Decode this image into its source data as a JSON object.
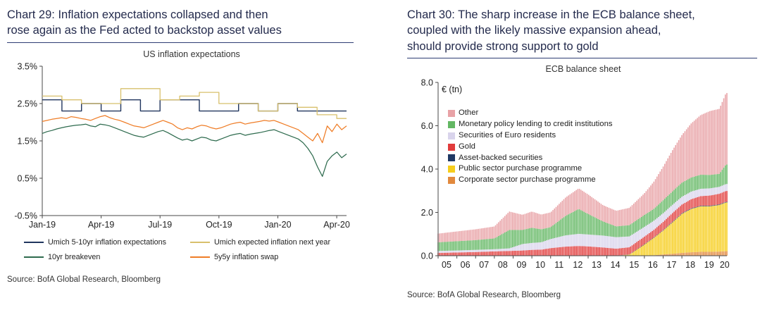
{
  "left": {
    "heading_lines": [
      "Chart 29: Inflation expectations collapsed and then",
      "rose again as the Fed acted to backstop asset values"
    ],
    "source": "Source: BofA Global Research, Bloomberg"
  },
  "right": {
    "heading_lines": [
      "Chart 30: The sharp increase in the ECB balance sheet,",
      "coupled with the likely massive expansion ahead,",
      "should provide strong support to gold"
    ],
    "source": "Source: BofA Global Research, Bloomberg"
  },
  "colors": {
    "heading": "#242b4d",
    "rule": "#2e3d73",
    "axis": "#4a4a4a"
  },
  "chart_data": [
    {
      "type": "line",
      "title": "US inflation expectations",
      "ylim": [
        -0.5,
        3.5
      ],
      "ytick_values": [
        3.5,
        2.5,
        1.5,
        0.5,
        -0.5
      ],
      "ytick_labels": [
        "3.5%",
        "2.5%",
        "1.5%",
        "0.5%",
        "-0.5%"
      ],
      "x_range": [
        0,
        15.5
      ],
      "xticks": [
        {
          "m": 0,
          "label": "Jan-19"
        },
        {
          "m": 3,
          "label": "Apr-19"
        },
        {
          "m": 6,
          "label": "Jul-19"
        },
        {
          "m": 9,
          "label": "Oct-19"
        },
        {
          "m": 12,
          "label": "Jan-20"
        },
        {
          "m": 15,
          "label": "Apr-20"
        }
      ],
      "grid": false,
      "legend_position": "below",
      "series": [
        {
          "name": "Umich 5-10yr inflation expectations",
          "color": "#20355e",
          "style": "step",
          "width": 1.4,
          "values": [
            2.6,
            2.3,
            2.5,
            2.3,
            2.6,
            2.3,
            2.6,
            2.6,
            2.3,
            2.3,
            2.5,
            2.3,
            2.5,
            2.3,
            2.3,
            2.3
          ]
        },
        {
          "name": "Umich expected inflation next year",
          "color": "#d8c06c",
          "style": "step",
          "width": 1.3,
          "values": [
            2.7,
            2.6,
            2.5,
            2.5,
            2.9,
            2.9,
            2.6,
            2.7,
            2.8,
            2.5,
            2.5,
            2.3,
            2.5,
            2.4,
            2.2,
            2.1
          ]
        },
        {
          "name": "10yr breakeven",
          "color": "#2e6b4e",
          "style": "line",
          "width": 1.25,
          "values": [
            1.7,
            1.75,
            1.78,
            1.82,
            1.85,
            1.88,
            1.9,
            1.92,
            1.93,
            1.95,
            1.9,
            1.88,
            1.95,
            1.93,
            1.9,
            1.85,
            1.8,
            1.75,
            1.7,
            1.65,
            1.62,
            1.6,
            1.65,
            1.7,
            1.75,
            1.78,
            1.72,
            1.65,
            1.58,
            1.52,
            1.55,
            1.5,
            1.55,
            1.6,
            1.58,
            1.52,
            1.5,
            1.55,
            1.6,
            1.65,
            1.68,
            1.7,
            1.65,
            1.68,
            1.7,
            1.72,
            1.75,
            1.78,
            1.8,
            1.75,
            1.7,
            1.65,
            1.6,
            1.55,
            1.45,
            1.3,
            1.1,
            0.8,
            0.55,
            0.95,
            1.1,
            1.2,
            1.05,
            1.15
          ]
        },
        {
          "name": "5y5y inflation swap",
          "color": "#ef7d27",
          "style": "line",
          "width": 1.25,
          "values": [
            2.02,
            2.05,
            2.08,
            2.1,
            2.12,
            2.1,
            2.15,
            2.13,
            2.1,
            2.08,
            2.05,
            2.1,
            2.15,
            2.18,
            2.12,
            2.08,
            2.05,
            2.0,
            1.95,
            1.9,
            1.88,
            1.85,
            1.9,
            1.95,
            2.0,
            2.05,
            2.0,
            1.95,
            1.85,
            1.8,
            1.85,
            1.82,
            1.88,
            1.92,
            1.9,
            1.85,
            1.82,
            1.85,
            1.9,
            1.95,
            1.98,
            2.0,
            1.95,
            1.98,
            2.0,
            2.02,
            2.05,
            2.03,
            2.05,
            2.0,
            1.95,
            1.9,
            1.85,
            1.8,
            1.7,
            1.6,
            1.5,
            1.7,
            1.45,
            1.9,
            1.75,
            1.95,
            1.8,
            1.9
          ]
        }
      ]
    },
    {
      "type": "stacked-bar",
      "title": "ECB balance sheet",
      "unit_label": "€ (tn)",
      "ylim": [
        0,
        8
      ],
      "ytick_values": [
        0,
        2,
        4,
        6,
        8
      ],
      "ytick_labels": [
        "0.0",
        "2.0",
        "4.0",
        "6.0",
        "8.0"
      ],
      "x_start": 2005,
      "x_end": 2020.4,
      "xtick_labels": [
        "05",
        "06",
        "07",
        "08",
        "09",
        "10",
        "11",
        "12",
        "13",
        "14",
        "15",
        "16",
        "17",
        "18",
        "19",
        "20"
      ],
      "grid": false,
      "legend_position": "inside-top-left",
      "anchor_times": [
        2005.0,
        2006.0,
        2007.0,
        2008.0,
        2008.8,
        2009.5,
        2010.0,
        2010.5,
        2011.0,
        2011.8,
        2012.5,
        2013.0,
        2013.8,
        2014.5,
        2015.2,
        2016.0,
        2016.5,
        2017.0,
        2017.5,
        2018.0,
        2018.5,
        2019.0,
        2019.5,
        2020.0,
        2020.35
      ],
      "series": [
        {
          "name": "Corporate sector purchase programme",
          "color": "#e2893d",
          "anchors": [
            0,
            0,
            0,
            0,
            0,
            0,
            0,
            0,
            0,
            0,
            0,
            0,
            0,
            0,
            0,
            0.01,
            0.02,
            0.06,
            0.09,
            0.13,
            0.16,
            0.18,
            0.18,
            0.19,
            0.21
          ]
        },
        {
          "name": "Public sector purchase programme",
          "color": "#f6cd1b",
          "anchors": [
            0,
            0,
            0,
            0,
            0,
            0,
            0,
            0,
            0,
            0,
            0,
            0,
            0,
            0,
            0.05,
            0.5,
            0.8,
            1.1,
            1.45,
            1.8,
            2.0,
            2.1,
            2.1,
            2.15,
            2.25
          ]
        },
        {
          "name": "Asset-backed securities",
          "color": "#1f3864",
          "anchors": [
            0,
            0,
            0,
            0,
            0,
            0,
            0,
            0,
            0,
            0,
            0,
            0,
            0,
            0.005,
            0.01,
            0.02,
            0.02,
            0.02,
            0.03,
            0.03,
            0.03,
            0.03,
            0.03,
            0.03,
            0.03
          ]
        },
        {
          "name": "Gold",
          "color": "#e13c3c",
          "anchors": [
            0.13,
            0.15,
            0.17,
            0.2,
            0.22,
            0.24,
            0.27,
            0.28,
            0.35,
            0.42,
            0.45,
            0.43,
            0.38,
            0.32,
            0.33,
            0.35,
            0.35,
            0.38,
            0.4,
            0.4,
            0.42,
            0.44,
            0.47,
            0.49,
            0.5
          ]
        },
        {
          "name": "Securities of Euro residents",
          "color": "#d9d4ec",
          "anchors": [
            0.09,
            0.09,
            0.1,
            0.1,
            0.12,
            0.3,
            0.32,
            0.34,
            0.42,
            0.52,
            0.56,
            0.55,
            0.55,
            0.53,
            0.5,
            0.45,
            0.42,
            0.4,
            0.38,
            0.36,
            0.35,
            0.34,
            0.33,
            0.32,
            0.32
          ]
        },
        {
          "name": "Monetary policy lending to credit institutions",
          "color": "#63b763",
          "anchors": [
            0.4,
            0.43,
            0.45,
            0.5,
            0.85,
            0.65,
            0.7,
            0.6,
            0.55,
            0.9,
            1.15,
            0.95,
            0.65,
            0.5,
            0.52,
            0.55,
            0.55,
            0.6,
            0.62,
            0.65,
            0.65,
            0.65,
            0.62,
            0.6,
            0.9
          ]
        },
        {
          "name": "Other",
          "color": "#e8a2a6",
          "anchors": [
            0.4,
            0.45,
            0.5,
            0.55,
            0.85,
            0.7,
            0.75,
            0.68,
            0.68,
            0.85,
            0.95,
            0.9,
            0.75,
            0.72,
            0.8,
            1.0,
            1.25,
            1.55,
            1.9,
            2.2,
            2.5,
            2.75,
            2.95,
            3.0,
            3.3
          ]
        }
      ]
    }
  ]
}
